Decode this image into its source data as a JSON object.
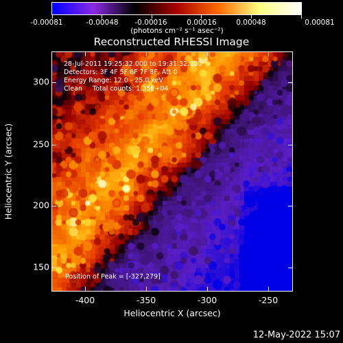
{
  "colorbar": {
    "tick_labels": [
      "-0.00081",
      "-0.00048",
      "-0.00016",
      "0.00016",
      "0.00048",
      "0.00081"
    ],
    "units": "(photons cm⁻² s⁻¹ asec⁻²)",
    "colors": [
      "#0000ff",
      "#8a2be2",
      "#000000",
      "#aa0000",
      "#ff6a00",
      "#ffff80",
      "#ffffff"
    ]
  },
  "title": "Reconstructed RHESSI Image",
  "info": {
    "line1": "28-Jul-2011 19:25:32.000 to 19:31:32.000",
    "line2": "Detectors: 3F 4F 5F 6F 7F 8F, Att 0",
    "line3": "Energy Range: 12.0 - 25.0 keV",
    "line4": "Clean     Total counts: 1.35E+04"
  },
  "peak": "Position of Peak = [-327,279]",
  "axes": {
    "xlabel": "Heliocentric X (arcsec)",
    "ylabel": "Heliocentric Y (arcsec)",
    "xticks": [
      "-400",
      "-350",
      "-300",
      "-250"
    ],
    "yticks": [
      "300",
      "250",
      "200",
      "150"
    ],
    "xlim": [
      -430,
      -233
    ],
    "ylim": [
      133,
      329
    ]
  },
  "timestamp": "12-May-2022 15:07"
}
